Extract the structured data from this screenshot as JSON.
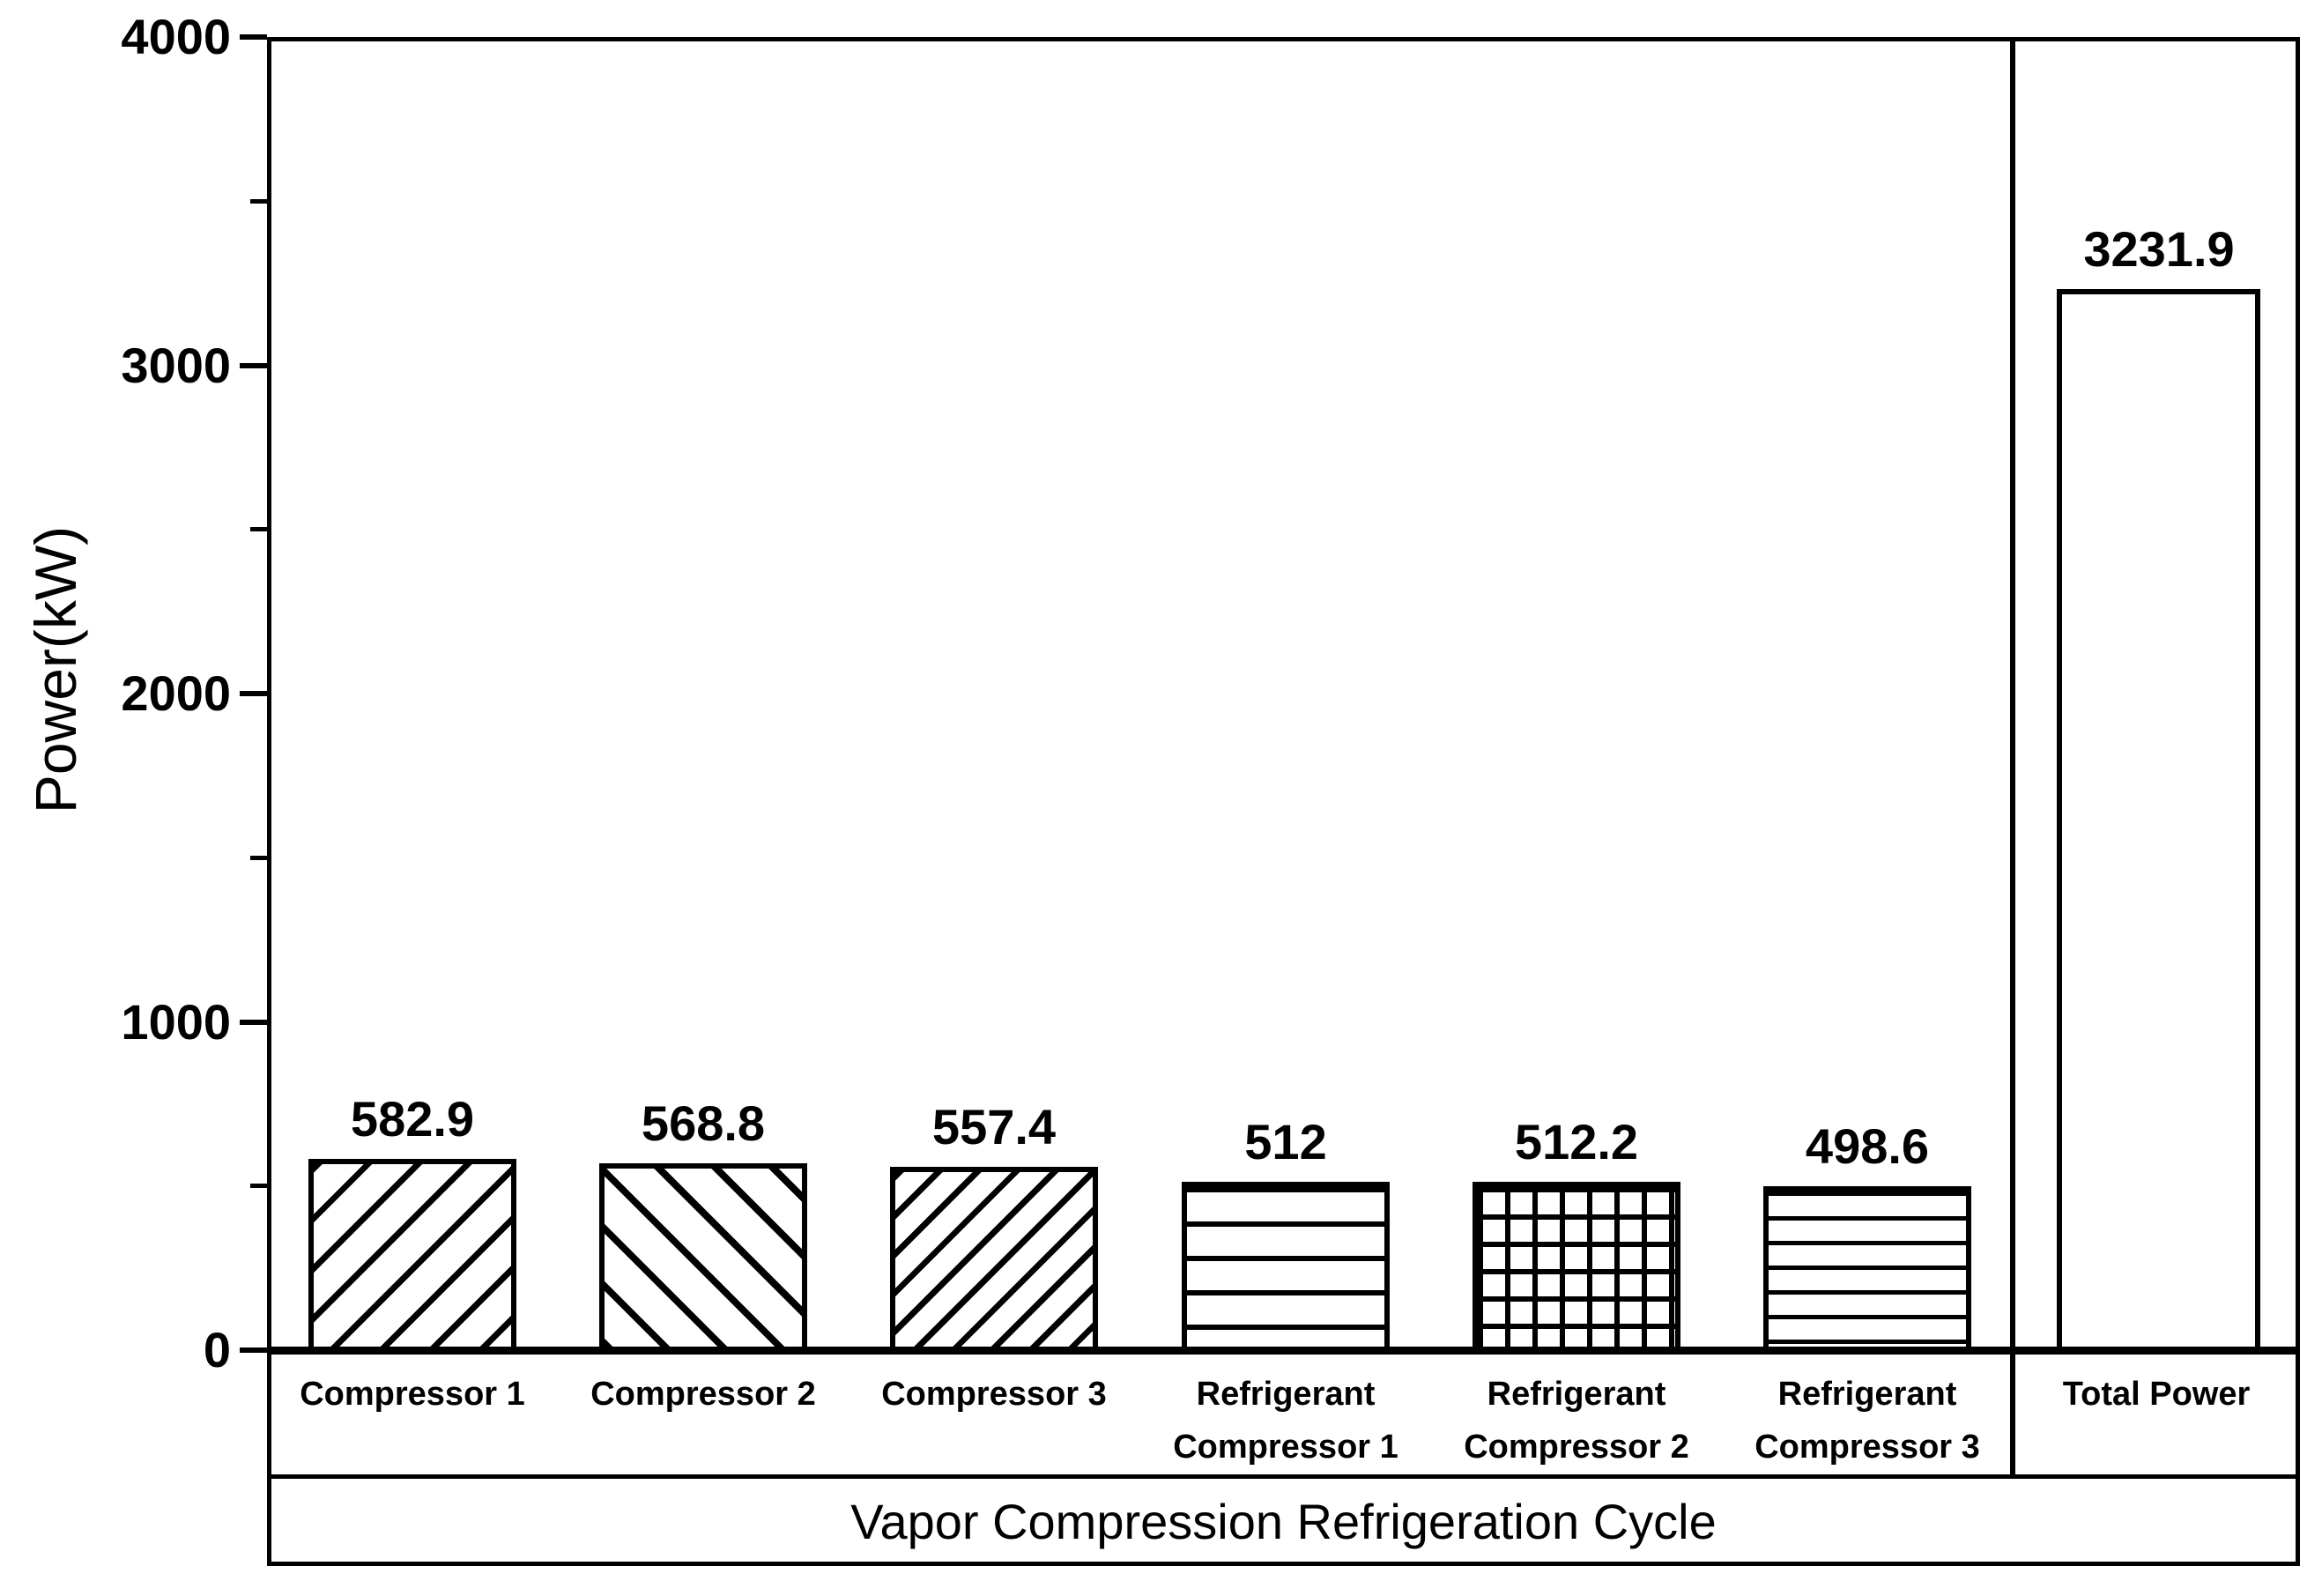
{
  "chart_data": {
    "type": "bar",
    "ylabel": "Power(kW)",
    "xlabel": "Vapor Compression Refrigeration Cycle",
    "ylim": [
      0,
      4000
    ],
    "y_major_ticks": [
      0,
      1000,
      2000,
      3000,
      4000
    ],
    "y_minor_ticks": [
      500,
      1500,
      2500,
      3500
    ],
    "grid": "off",
    "legend": "none",
    "colors": {
      "foreground": "#000000",
      "background": "#ffffff"
    },
    "panels": [
      {
        "name": "main",
        "bars": [
          {
            "label_lines": [
              "Compressor 1"
            ],
            "value": 582.9,
            "value_label": "582.9",
            "hatch": "diagonal-up"
          },
          {
            "label_lines": [
              "Compressor 2"
            ],
            "value": 568.8,
            "value_label": "568.8",
            "hatch": "diagonal-down"
          },
          {
            "label_lines": [
              "Compressor 3"
            ],
            "value": 557.4,
            "value_label": "557.4",
            "hatch": "diagonal-up-dense"
          },
          {
            "label_lines": [
              "Refrigerant",
              "Compressor 1"
            ],
            "value": 512,
            "value_label": "512",
            "hatch": "horizontal"
          },
          {
            "label_lines": [
              "Refrigerant",
              "Compressor 2"
            ],
            "value": 512.2,
            "value_label": "512.2",
            "hatch": "grid"
          },
          {
            "label_lines": [
              "Refrigerant",
              "Compressor 3"
            ],
            "value": 498.6,
            "value_label": "498.6",
            "hatch": "horizontal-fine"
          }
        ]
      },
      {
        "name": "total",
        "bars": [
          {
            "label_lines": [
              "Total Power"
            ],
            "value": 3231.9,
            "value_label": "3231.9",
            "hatch": "none"
          }
        ]
      }
    ]
  }
}
